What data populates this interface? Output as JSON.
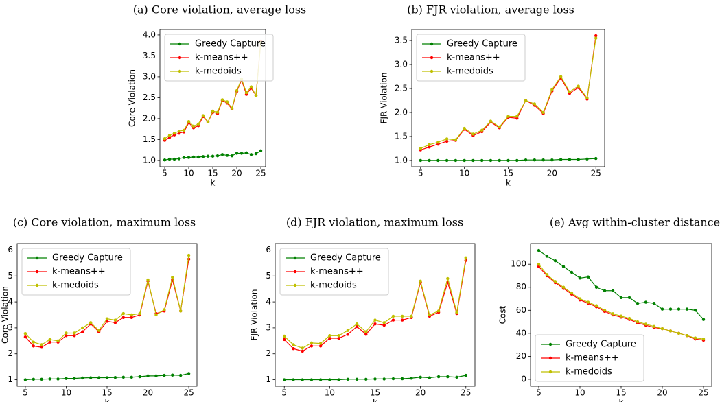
{
  "chart_data": [
    {
      "type": "line",
      "title": "(a) Core violation, average loss",
      "xlabel": "k",
      "ylabel": "Core Violation",
      "x": [
        5,
        6,
        7,
        8,
        9,
        10,
        11,
        12,
        13,
        14,
        15,
        16,
        17,
        18,
        19,
        20,
        21,
        22,
        23,
        24,
        25
      ],
      "series": [
        {
          "name": "Greedy Capture",
          "color": "#008000",
          "values": [
            1.01,
            1.03,
            1.03,
            1.04,
            1.07,
            1.07,
            1.08,
            1.08,
            1.09,
            1.1,
            1.1,
            1.11,
            1.14,
            1.12,
            1.11,
            1.17,
            1.17,
            1.18,
            1.14,
            1.16,
            1.23
          ]
        },
        {
          "name": "k-means++",
          "color": "#ff0000",
          "values": [
            1.48,
            1.55,
            1.61,
            1.65,
            1.68,
            1.9,
            1.78,
            1.83,
            2.05,
            1.92,
            2.15,
            2.12,
            2.43,
            2.37,
            2.23,
            2.65,
            2.92,
            2.58,
            2.73,
            2.55,
            3.85
          ]
        },
        {
          "name": "k-medoids",
          "color": "#bfbf00",
          "values": [
            1.52,
            1.6,
            1.65,
            1.7,
            1.72,
            1.93,
            1.82,
            1.87,
            2.07,
            1.92,
            2.18,
            2.15,
            2.45,
            2.4,
            2.25,
            2.67,
            2.95,
            2.62,
            2.76,
            2.55,
            3.82
          ]
        }
      ],
      "xlim": [
        4,
        26
      ],
      "ylim": [
        0.85,
        4.13
      ],
      "xticks": [
        5,
        10,
        15,
        20,
        25
      ],
      "yticks": [
        {
          "value": 1,
          "label": "1.0"
        },
        {
          "value": 1.5,
          "label": "1.5"
        },
        {
          "value": 2,
          "label": "2.0"
        },
        {
          "value": 2.5,
          "label": "2.5"
        },
        {
          "value": 3,
          "label": "3.0"
        },
        {
          "value": 3.5,
          "label": "3.5"
        },
        {
          "value": 4,
          "label": "4.0"
        }
      ],
      "legend": "upper left"
    },
    {
      "type": "line",
      "title": "(b) FJR violation, average loss",
      "xlabel": "k",
      "ylabel": "FJR Violation",
      "x": [
        5,
        6,
        7,
        8,
        9,
        10,
        11,
        12,
        13,
        14,
        15,
        16,
        17,
        18,
        19,
        20,
        21,
        22,
        23,
        24,
        25
      ],
      "series": [
        {
          "name": "Greedy Capture",
          "color": "#008000",
          "values": [
            1.0,
            1.0,
            1.0,
            1.0,
            1.0,
            1.0,
            1.0,
            1.0,
            1.0,
            1.0,
            1.0,
            1.0,
            1.01,
            1.01,
            1.01,
            1.01,
            1.02,
            1.02,
            1.02,
            1.03,
            1.04
          ]
        },
        {
          "name": "k-means++",
          "color": "#ff0000",
          "values": [
            1.22,
            1.28,
            1.34,
            1.4,
            1.42,
            1.65,
            1.52,
            1.6,
            1.8,
            1.68,
            1.9,
            1.88,
            2.25,
            2.15,
            1.98,
            2.45,
            2.72,
            2.4,
            2.52,
            2.28,
            3.6
          ]
        },
        {
          "name": "k-medoids",
          "color": "#bfbf00",
          "values": [
            1.25,
            1.33,
            1.38,
            1.45,
            1.43,
            1.67,
            1.55,
            1.63,
            1.82,
            1.7,
            1.92,
            1.92,
            2.25,
            2.18,
            2.0,
            2.48,
            2.75,
            2.43,
            2.55,
            2.3,
            3.55
          ]
        }
      ],
      "xlim": [
        4,
        26
      ],
      "ylim": [
        0.87,
        3.73
      ],
      "xticks": [
        5,
        10,
        15,
        20,
        25
      ],
      "yticks": [
        {
          "value": 1,
          "label": "1.0"
        },
        {
          "value": 1.5,
          "label": "1.5"
        },
        {
          "value": 2,
          "label": "2.0"
        },
        {
          "value": 2.5,
          "label": "2.5"
        },
        {
          "value": 3,
          "label": "3.0"
        },
        {
          "value": 3.5,
          "label": "3.5"
        }
      ],
      "legend": "upper left"
    },
    {
      "type": "line",
      "title": "(c) Core violation, maximum loss",
      "xlabel": "k",
      "ylabel": "Core Violation",
      "x": [
        5,
        6,
        7,
        8,
        9,
        10,
        11,
        12,
        13,
        14,
        15,
        16,
        17,
        18,
        19,
        20,
        21,
        22,
        23,
        24,
        25
      ],
      "series": [
        {
          "name": "Greedy Capture",
          "color": "#008000",
          "values": [
            1.0,
            1.02,
            1.02,
            1.03,
            1.03,
            1.05,
            1.05,
            1.07,
            1.08,
            1.08,
            1.08,
            1.09,
            1.1,
            1.1,
            1.12,
            1.15,
            1.15,
            1.17,
            1.18,
            1.17,
            1.24
          ]
        },
        {
          "name": "k-means++",
          "color": "#ff0000",
          "values": [
            2.65,
            2.3,
            2.25,
            2.45,
            2.45,
            2.7,
            2.7,
            2.85,
            3.15,
            2.85,
            3.25,
            3.2,
            3.4,
            3.4,
            3.5,
            4.8,
            3.55,
            3.65,
            4.85,
            3.65,
            5.65
          ]
        },
        {
          "name": "k-medoids",
          "color": "#bfbf00",
          "values": [
            2.78,
            2.45,
            2.35,
            2.55,
            2.5,
            2.8,
            2.8,
            3.0,
            3.2,
            2.9,
            3.35,
            3.3,
            3.55,
            3.5,
            3.55,
            4.85,
            3.5,
            3.7,
            4.95,
            3.65,
            5.8
          ]
        }
      ],
      "xlim": [
        4,
        26
      ],
      "ylim": [
        0.75,
        6.25
      ],
      "xticks": [
        5,
        10,
        15,
        20,
        25
      ],
      "yticks": [
        1,
        2,
        3,
        4,
        5,
        6
      ],
      "legend": "upper left"
    },
    {
      "type": "line",
      "title": "(d) FJR violation, maximum loss",
      "xlabel": "k",
      "ylabel": "FJR Violation",
      "x": [
        5,
        6,
        7,
        8,
        9,
        10,
        11,
        12,
        13,
        14,
        15,
        16,
        17,
        18,
        19,
        20,
        21,
        22,
        23,
        24,
        25
      ],
      "series": [
        {
          "name": "Greedy Capture",
          "color": "#008000",
          "values": [
            1.0,
            1.0,
            1.0,
            1.0,
            1.0,
            1.0,
            1.0,
            1.02,
            1.02,
            1.02,
            1.03,
            1.03,
            1.04,
            1.04,
            1.06,
            1.1,
            1.08,
            1.12,
            1.12,
            1.1,
            1.17
          ]
        },
        {
          "name": "k-means++",
          "color": "#ff0000",
          "values": [
            2.55,
            2.2,
            2.1,
            2.3,
            2.3,
            2.6,
            2.6,
            2.75,
            3.05,
            2.75,
            3.15,
            3.1,
            3.3,
            3.3,
            3.4,
            4.75,
            3.45,
            3.6,
            4.75,
            3.55,
            5.6
          ]
        },
        {
          "name": "k-medoids",
          "color": "#bfbf00",
          "values": [
            2.68,
            2.35,
            2.22,
            2.42,
            2.4,
            2.7,
            2.7,
            2.9,
            3.15,
            2.85,
            3.3,
            3.2,
            3.45,
            3.45,
            3.45,
            4.8,
            3.5,
            3.65,
            4.9,
            3.6,
            5.7
          ]
        }
      ],
      "xlim": [
        4,
        26
      ],
      "ylim": [
        0.75,
        6.25
      ],
      "xticks": [
        5,
        10,
        15,
        20,
        25
      ],
      "yticks": [
        1,
        2,
        3,
        4,
        5,
        6
      ],
      "legend": "upper left"
    },
    {
      "type": "line",
      "title": "(e) Avg within-cluster distance",
      "xlabel": "k",
      "ylabel": "Cost",
      "x": [
        5,
        6,
        7,
        8,
        9,
        10,
        11,
        12,
        13,
        14,
        15,
        16,
        17,
        18,
        19,
        20,
        21,
        22,
        23,
        24,
        25
      ],
      "series": [
        {
          "name": "Greedy Capture",
          "color": "#008000",
          "values": [
            112,
            107,
            103,
            98,
            93,
            88,
            89,
            80,
            77,
            77,
            71,
            71,
            66,
            67,
            66,
            61,
            61,
            61,
            61,
            60,
            52
          ]
        },
        {
          "name": "k-means++",
          "color": "#ff0000",
          "values": [
            98,
            90,
            84,
            79,
            74,
            69,
            66,
            63,
            59,
            56,
            54,
            52,
            49,
            47,
            45,
            44,
            42,
            40,
            38,
            35,
            34
          ]
        },
        {
          "name": "k-medoids",
          "color": "#bfbf00",
          "values": [
            100,
            91,
            85,
            80,
            75,
            70,
            67,
            64,
            60,
            57,
            55,
            53,
            50,
            48,
            46,
            44,
            42,
            40,
            38,
            36,
            35
          ]
        }
      ],
      "xlim": [
        4,
        26
      ],
      "ylim": [
        -6,
        118
      ],
      "xticks": [
        5,
        10,
        15,
        20,
        25
      ],
      "yticks": [
        0,
        20,
        40,
        60,
        80,
        100
      ],
      "legend": "lower left"
    }
  ]
}
